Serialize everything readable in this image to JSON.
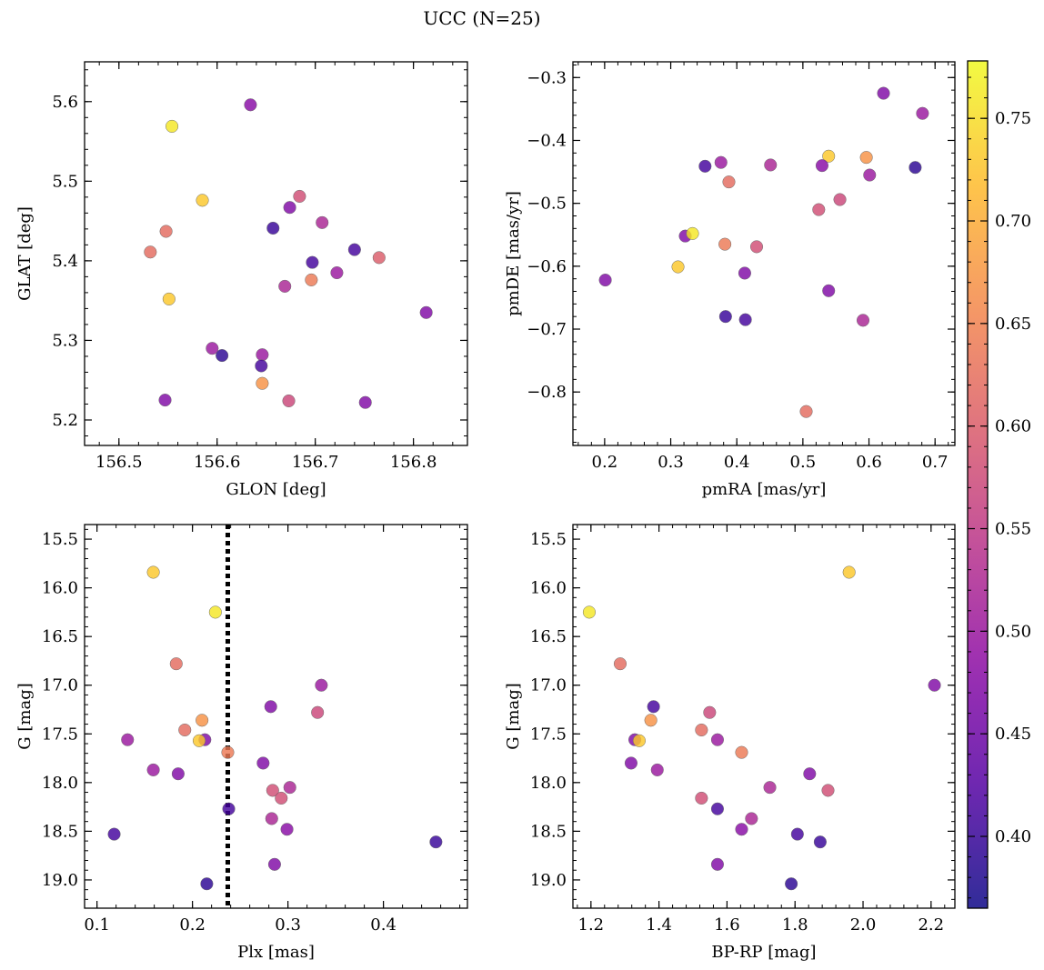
{
  "figure": {
    "title": "UCC (N=25)"
  },
  "colorbar": {
    "colormap": "plasma",
    "range": [
      0.365,
      0.778
    ],
    "ticks": [
      0.4,
      0.45,
      0.5,
      0.55,
      0.6,
      0.65,
      0.7,
      0.75
    ],
    "tick_labels": [
      "0.40",
      "0.45",
      "0.50",
      "0.55",
      "0.60",
      "0.65",
      "0.70",
      "0.75"
    ]
  },
  "chart_data": [
    {
      "type": "scatter",
      "xlabel": "GLON [deg]",
      "ylabel": "GLAT [deg]",
      "xlim": [
        156.465,
        156.855
      ],
      "ylim": [
        5.168,
        5.65
      ],
      "xticks": [
        156.5,
        156.6,
        156.7,
        156.8
      ],
      "xtick_labels": [
        "156.5",
        "156.6",
        "156.7",
        "156.8"
      ],
      "yticks": [
        5.2,
        5.3,
        5.4,
        5.5,
        5.6
      ],
      "ytick_labels": [
        "5.2",
        "5.3",
        "5.4",
        "5.5",
        "5.6"
      ],
      "x": [
        156.554,
        156.585,
        156.548,
        156.532,
        156.551,
        156.634,
        156.674,
        156.684,
        156.657,
        156.707,
        156.74,
        156.697,
        156.765,
        156.696,
        156.722,
        156.669,
        156.813,
        156.595,
        156.605,
        156.646,
        156.645,
        156.646,
        156.547,
        156.673,
        156.751
      ],
      "y": [
        5.569,
        5.476,
        5.437,
        5.411,
        5.352,
        5.596,
        5.467,
        5.481,
        5.441,
        5.448,
        5.414,
        5.398,
        5.404,
        5.376,
        5.385,
        5.368,
        5.335,
        5.29,
        5.281,
        5.282,
        5.268,
        5.246,
        5.225,
        5.224,
        5.222
      ],
      "c": [
        0.76,
        0.73,
        0.62,
        0.62,
        0.73,
        0.48,
        0.47,
        0.58,
        0.4,
        0.52,
        0.41,
        0.41,
        0.6,
        0.64,
        0.5,
        0.52,
        0.47,
        0.5,
        0.39,
        0.5,
        0.41,
        0.67,
        0.47,
        0.57,
        0.47
      ]
    },
    {
      "type": "scatter",
      "xlabel": "pmRA [mas/yr]",
      "ylabel": "pmDE [mas/yr]",
      "xlim": [
        0.152,
        0.73
      ],
      "ylim": [
        -0.885,
        -0.275
      ],
      "xticks": [
        0.2,
        0.3,
        0.4,
        0.5,
        0.6,
        0.7
      ],
      "xtick_labels": [
        "0.2",
        "0.3",
        "0.4",
        "0.5",
        "0.6",
        "0.7"
      ],
      "yticks": [
        -0.8,
        -0.7,
        -0.6,
        -0.5,
        -0.4,
        -0.3
      ],
      "ytick_labels": [
        "−0.8",
        "−0.7",
        "−0.6",
        "−0.5",
        "−0.4",
        "−0.3"
      ],
      "x": [
        0.622,
        0.681,
        0.539,
        0.596,
        0.352,
        0.376,
        0.451,
        0.529,
        0.601,
        0.67,
        0.388,
        0.556,
        0.524,
        0.322,
        0.333,
        0.382,
        0.43,
        0.311,
        0.412,
        0.201,
        0.539,
        0.383,
        0.413,
        0.591,
        0.505
      ],
      "y": [
        -0.325,
        -0.357,
        -0.425,
        -0.427,
        -0.441,
        -0.435,
        -0.439,
        -0.44,
        -0.455,
        -0.443,
        -0.466,
        -0.494,
        -0.51,
        -0.552,
        -0.548,
        -0.565,
        -0.569,
        -0.601,
        -0.611,
        -0.622,
        -0.639,
        -0.68,
        -0.685,
        -0.686,
        -0.831
      ],
      "c": [
        0.47,
        0.5,
        0.73,
        0.67,
        0.41,
        0.5,
        0.52,
        0.48,
        0.5,
        0.39,
        0.62,
        0.57,
        0.58,
        0.47,
        0.76,
        0.64,
        0.58,
        0.73,
        0.47,
        0.47,
        0.47,
        0.4,
        0.41,
        0.52,
        0.62
      ]
    },
    {
      "type": "scatter",
      "xlabel": "Plx [mas]",
      "ylabel": "G [mag]",
      "xlim": [
        0.087,
        0.488
      ],
      "ylim": [
        19.29,
        15.35
      ],
      "y_inverted": true,
      "xticks": [
        0.1,
        0.2,
        0.3,
        0.4
      ],
      "xtick_labels": [
        "0.1",
        "0.2",
        "0.3",
        "0.4"
      ],
      "yticks": [
        15.5,
        16.0,
        16.5,
        17.0,
        17.5,
        18.0,
        18.5,
        19.0
      ],
      "ytick_labels": [
        "15.5",
        "16.0",
        "16.5",
        "17.0",
        "17.5",
        "18.0",
        "18.5",
        "19.0"
      ],
      "vline": {
        "x": 0.237,
        "style": "dotted",
        "color": "#000000"
      },
      "x": [
        0.159,
        0.224,
        0.183,
        0.335,
        0.282,
        0.21,
        0.331,
        0.192,
        0.132,
        0.213,
        0.207,
        0.237,
        0.274,
        0.159,
        0.185,
        0.302,
        0.284,
        0.293,
        0.238,
        0.283,
        0.299,
        0.118,
        0.455,
        0.286,
        0.215
      ],
      "y": [
        15.84,
        16.25,
        16.78,
        17.0,
        17.22,
        17.36,
        17.28,
        17.46,
        17.56,
        17.56,
        17.57,
        17.69,
        17.8,
        17.87,
        17.91,
        18.05,
        18.08,
        18.16,
        18.27,
        18.37,
        18.48,
        18.53,
        18.61,
        18.84,
        19.04
      ],
      "c": [
        0.73,
        0.76,
        0.62,
        0.5,
        0.47,
        0.67,
        0.57,
        0.62,
        0.5,
        0.47,
        0.73,
        0.64,
        0.47,
        0.5,
        0.47,
        0.52,
        0.58,
        0.58,
        0.41,
        0.52,
        0.48,
        0.41,
        0.4,
        0.47,
        0.39
      ]
    },
    {
      "type": "scatter",
      "xlabel": "BP-RP [mag]",
      "ylabel": "G [mag]",
      "xlim": [
        1.147,
        2.27
      ],
      "ylim": [
        19.29,
        15.35
      ],
      "y_inverted": true,
      "xticks": [
        1.2,
        1.4,
        1.6,
        1.8,
        2.0,
        2.2
      ],
      "xtick_labels": [
        "1.2",
        "1.4",
        "1.6",
        "1.8",
        "2.0",
        "2.2"
      ],
      "yticks": [
        15.5,
        16.0,
        16.5,
        17.0,
        17.5,
        18.0,
        18.5,
        19.0
      ],
      "ytick_labels": [
        "15.5",
        "16.0",
        "16.5",
        "17.0",
        "17.5",
        "18.0",
        "18.5",
        "19.0"
      ],
      "x": [
        1.959,
        1.195,
        1.286,
        2.21,
        1.384,
        1.376,
        1.549,
        1.525,
        1.329,
        1.342,
        1.572,
        1.643,
        1.318,
        1.395,
        1.843,
        1.726,
        1.897,
        1.525,
        1.572,
        1.672,
        1.643,
        1.807,
        1.874,
        1.572,
        1.789
      ],
      "y": [
        15.84,
        16.25,
        16.78,
        17.0,
        17.22,
        17.36,
        17.28,
        17.46,
        17.56,
        17.57,
        17.56,
        17.69,
        17.8,
        17.87,
        17.91,
        18.05,
        18.08,
        18.16,
        18.27,
        18.37,
        18.48,
        18.53,
        18.61,
        18.84,
        19.04
      ],
      "c": [
        0.73,
        0.76,
        0.62,
        0.47,
        0.41,
        0.67,
        0.57,
        0.62,
        0.47,
        0.73,
        0.5,
        0.64,
        0.47,
        0.5,
        0.47,
        0.52,
        0.58,
        0.58,
        0.41,
        0.52,
        0.48,
        0.41,
        0.4,
        0.47,
        0.39
      ]
    }
  ]
}
